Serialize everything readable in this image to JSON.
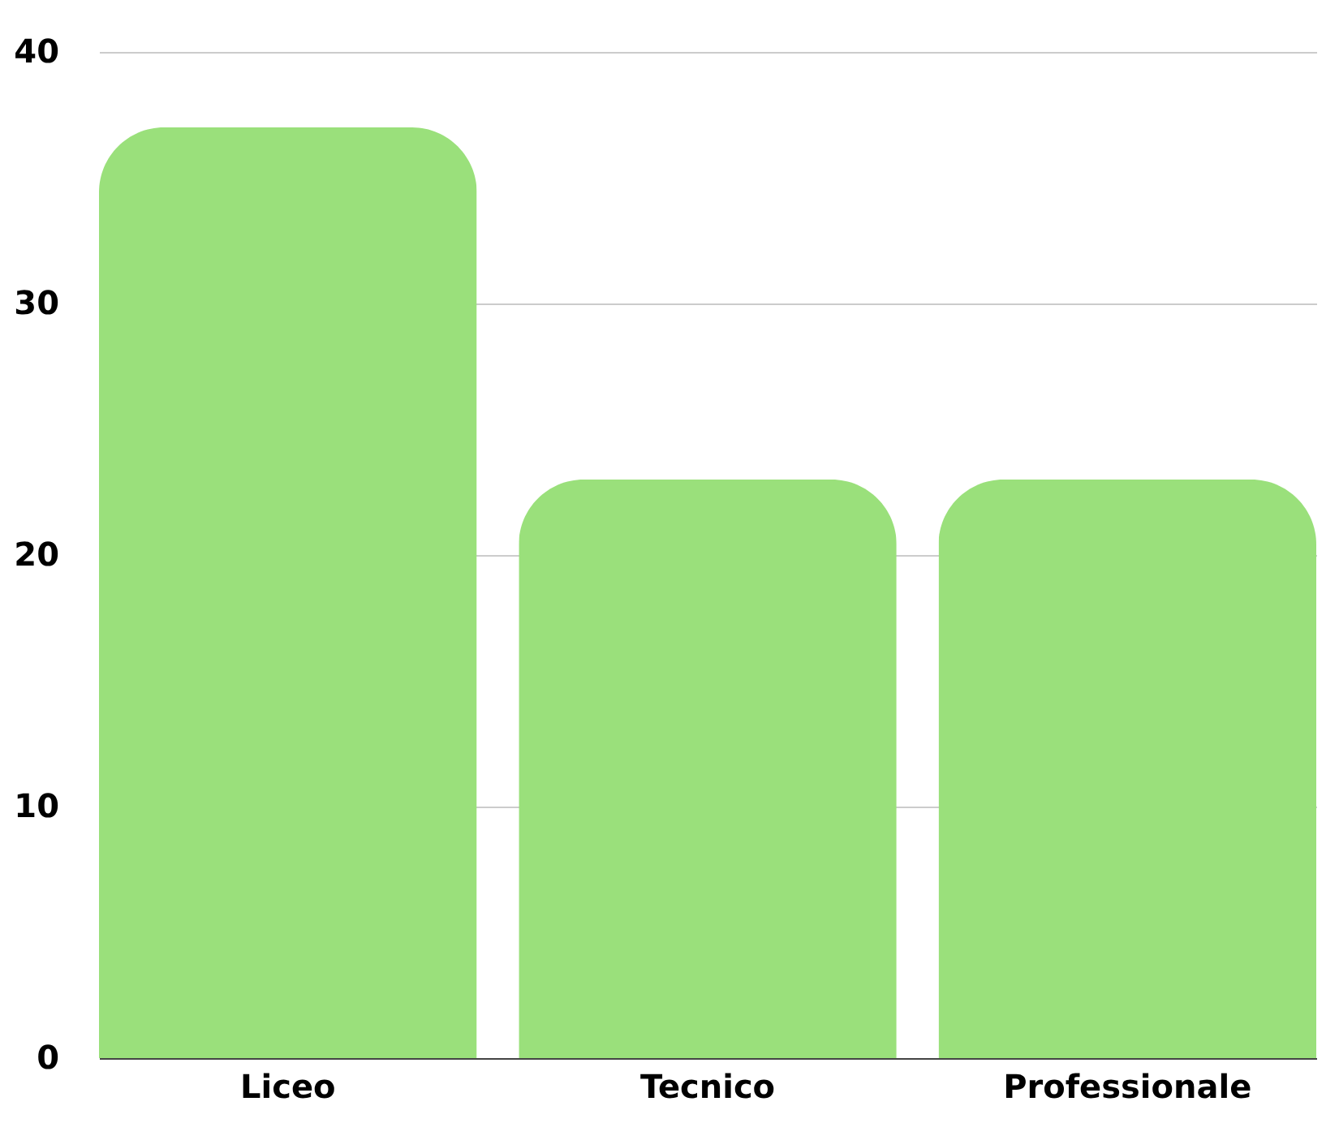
{
  "chart_data": {
    "type": "bar",
    "categories": [
      "Liceo",
      "Tecnico",
      "Professionale"
    ],
    "values": [
      37,
      23,
      23
    ],
    "color": "#9ae07b",
    "ylim": [
      0,
      40
    ],
    "yticks": [
      0,
      10,
      20,
      30,
      40
    ],
    "grid": "y"
  }
}
